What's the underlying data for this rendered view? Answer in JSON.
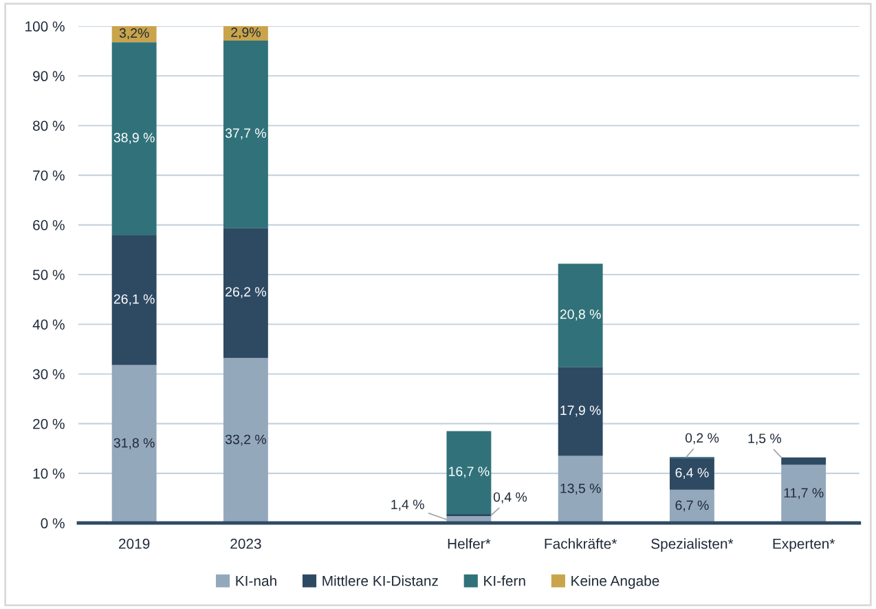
{
  "chart_data": {
    "type": "bar",
    "stacked": true,
    "categories": [
      "2019",
      "2023",
      null,
      "Helfer*",
      "Fachkräfte*",
      "Spezialisten*",
      "Experten*"
    ],
    "series": [
      {
        "name": "KI-nah",
        "color": "#94a8bc",
        "values": [
          31.8,
          33.2,
          null,
          1.4,
          13.5,
          6.7,
          11.7
        ],
        "value_labels": [
          "31,8 %",
          "33,2 %",
          null,
          "1,4 %",
          "13,5 %",
          "6,7 %",
          "11,7 %"
        ]
      },
      {
        "name": "Mittlere KI-Distanz",
        "color": "#2e4a63",
        "values": [
          26.1,
          26.2,
          null,
          0.4,
          17.9,
          6.4,
          1.5
        ],
        "value_labels": [
          "26,1 %",
          "26,2 %",
          null,
          "0,4 %",
          "17,9 %",
          "6,4 %",
          "1,5 %"
        ]
      },
      {
        "name": "KI-fern",
        "color": "#31727a",
        "values": [
          38.9,
          37.7,
          null,
          16.7,
          20.8,
          0.2,
          null
        ],
        "value_labels": [
          "38,9 %",
          "37,7 %",
          null,
          "16,7 %",
          "20,8 %",
          "0,2 %",
          null
        ]
      },
      {
        "name": "Keine Angabe",
        "color": "#c9a44c",
        "values": [
          3.2,
          2.9,
          null,
          null,
          null,
          null,
          null
        ],
        "value_labels": [
          "3,2%",
          "2,9%",
          null,
          null,
          null,
          null,
          null
        ]
      }
    ],
    "ylim": [
      0,
      100
    ],
    "yticks": [
      {
        "value": 0,
        "label": "0 %"
      },
      {
        "value": 10,
        "label": "10 %"
      },
      {
        "value": 20,
        "label": "20 %"
      },
      {
        "value": 30,
        "label": "30 %"
      },
      {
        "value": 40,
        "label": "40 %"
      },
      {
        "value": 50,
        "label": "50 %"
      },
      {
        "value": 60,
        "label": "60 %"
      },
      {
        "value": 70,
        "label": "70 %"
      },
      {
        "value": 80,
        "label": "80 %"
      },
      {
        "value": 90,
        "label": "90 %"
      },
      {
        "value": 100,
        "label": "100 %"
      }
    ],
    "grid": "y",
    "legend": "bottom"
  }
}
